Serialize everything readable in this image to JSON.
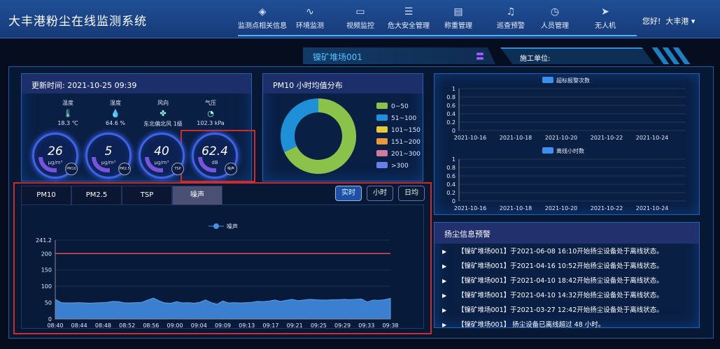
{
  "header": {
    "title": "大丰港粉尘在线监测系统",
    "nav": [
      {
        "icon": "layers-icon",
        "glyph": "◈",
        "label": "监测点相关信息"
      },
      {
        "icon": "pulse-icon",
        "glyph": "∿",
        "label": "环境监测"
      },
      {
        "icon": "video-icon",
        "glyph": "▭",
        "label": "视频监控"
      },
      {
        "icon": "sliders-icon",
        "glyph": "☰",
        "label": "危大安全管理"
      },
      {
        "icon": "document-icon",
        "glyph": "▤",
        "label": "称重管理"
      },
      {
        "icon": "bell-icon",
        "glyph": "♫",
        "label": "巡查预警"
      },
      {
        "icon": "alarm-clock-icon",
        "glyph": "◷",
        "label": "人员管理"
      },
      {
        "icon": "send-icon",
        "glyph": "➤",
        "label": "无人机"
      }
    ],
    "greeting": "您好!",
    "user": "大丰港 ▾"
  },
  "site": {
    "name": "镍矿堆场001",
    "unit_label": "施工单位:"
  },
  "status": {
    "update": "更新时间: 2021-10-25 09:39",
    "weather": [
      {
        "label": "温度",
        "glyph": "🌡",
        "value": "18.3 ℃"
      },
      {
        "label": "湿度",
        "glyph": "💧",
        "value": "64.6 %"
      },
      {
        "label": "风向",
        "glyph": "✤",
        "value": "东北偏北风 1级"
      },
      {
        "label": "气压",
        "glyph": "◔",
        "value": "102.3 kPa"
      }
    ],
    "gauges": [
      {
        "value": "26",
        "unit": "μg/m³",
        "badge": "PM10"
      },
      {
        "value": "5",
        "unit": "μg/m³",
        "badge": "PM2.5"
      },
      {
        "value": "40",
        "unit": "μg/m³",
        "badge": "TSP"
      },
      {
        "value": "62.4",
        "unit": "dB",
        "badge": "噪声"
      }
    ]
  },
  "donut": {
    "title": "PM10 小时均值分布",
    "legend": [
      {
        "label": "0~50",
        "color": "#8bc34a",
        "share": 68
      },
      {
        "label": "51~100",
        "color": "#1e90d8",
        "share": 32
      },
      {
        "label": "101~150",
        "color": "#e8c93a",
        "share": 0
      },
      {
        "label": "151~200",
        "color": "#e89a3a",
        "share": 0
      },
      {
        "label": "201~300",
        "color": "#d27aa0",
        "share": 0
      },
      {
        "label": ">300",
        "color": "#6a7ee8",
        "share": 0
      }
    ]
  },
  "right_charts": [
    {
      "legend": "超标报警次数",
      "yticks": [
        "1",
        "0.8",
        "0.6",
        "0.4",
        "0.2",
        "0"
      ],
      "xticks": [
        "2021-10-16",
        "2021-10-18",
        "2021-10-20",
        "2021-10-22",
        "2021-10-24"
      ]
    },
    {
      "legend": "离线小时数",
      "yticks": [
        "1",
        "0.8",
        "0.6",
        "0.4",
        "0.2",
        "0"
      ],
      "xticks": [
        "2021-10-16",
        "2021-10-18",
        "2021-10-20",
        "2021-10-22",
        "2021-10-24"
      ]
    }
  ],
  "alerts": {
    "title": "扬尘信息预警",
    "items": [
      "【镍矿堆场001】于2021-06-08 16:10开始扬尘设备处于离线状态。",
      "【镍矿堆场001】于2021-04-16 10:52开始扬尘设备处于离线状态。",
      "【镍矿堆场001】于2021-04-10 18:42开始扬尘设备处于离线状态。",
      "【镍矿堆场001】于2021-04-10 14:32开始扬尘设备处于离线状态。",
      "【镍矿堆场001】于2021-03-27 12:42开始扬尘设备处于离线状态。",
      "【镍矿堆场001】 扬尘设备已离线超过 48 小时。"
    ]
  },
  "trend": {
    "tabs": [
      "PM10",
      "PM2.5",
      "TSP",
      "噪声"
    ],
    "active_tab": "噪声",
    "buttons": [
      "实时",
      "小时",
      "日均"
    ],
    "active_button": "实时"
  },
  "chart_data": {
    "type": "area",
    "legend": "噪声",
    "ylim": [
      0,
      241.2
    ],
    "yticks": [
      "241.2",
      "200",
      "150",
      "100",
      "50",
      "0"
    ],
    "threshold": 200,
    "xticks": [
      "08:40",
      "08:44",
      "08:48",
      "08:52",
      "08:56",
      "09:00",
      "09:04",
      "09:09",
      "09:13",
      "09:17",
      "09:21",
      "09:25",
      "09:29",
      "09:33",
      "09:38"
    ],
    "values": [
      60,
      50,
      49,
      49,
      50,
      49,
      48,
      49,
      50,
      51,
      54,
      53,
      49,
      49,
      50,
      51,
      58,
      64,
      55,
      49,
      48,
      53,
      49,
      50,
      48,
      51,
      58,
      50,
      45,
      55,
      49,
      50,
      49,
      50,
      51,
      54,
      53,
      55,
      58,
      54,
      57,
      60,
      56,
      58,
      60,
      59,
      58,
      58,
      59,
      59,
      60,
      59,
      60,
      61,
      52,
      58,
      57,
      59,
      63
    ]
  }
}
